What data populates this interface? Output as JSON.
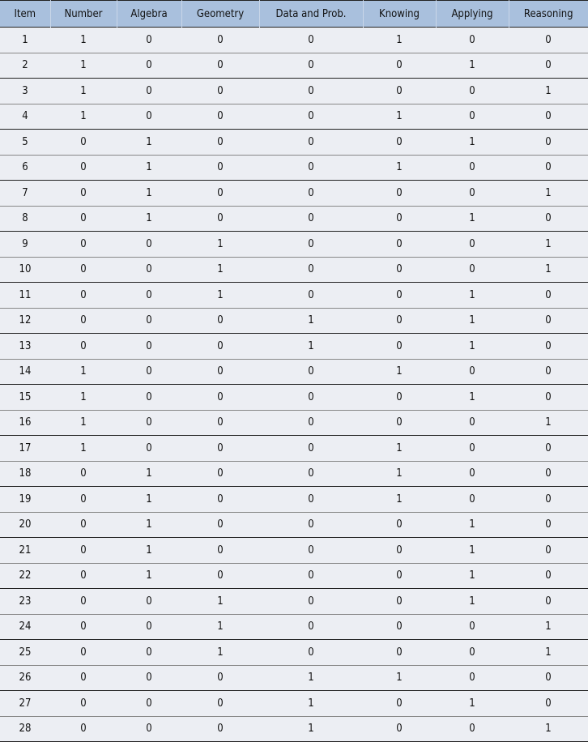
{
  "table": {
    "headers": [
      "Item",
      "Number",
      "Algebra",
      "Geometry",
      "Data and Prob.",
      "Knowing",
      "Applying",
      "Reasoning"
    ],
    "rows": [
      [
        "1",
        "1",
        "0",
        "0",
        "0",
        "1",
        "0",
        "0"
      ],
      [
        "2",
        "1",
        "0",
        "0",
        "0",
        "0",
        "1",
        "0"
      ],
      [
        "3",
        "1",
        "0",
        "0",
        "0",
        "0",
        "0",
        "1"
      ],
      [
        "4",
        "1",
        "0",
        "0",
        "0",
        "1",
        "0",
        "0"
      ],
      [
        "5",
        "0",
        "1",
        "0",
        "0",
        "0",
        "1",
        "0"
      ],
      [
        "6",
        "0",
        "1",
        "0",
        "0",
        "1",
        "0",
        "0"
      ],
      [
        "7",
        "0",
        "1",
        "0",
        "0",
        "0",
        "0",
        "1"
      ],
      [
        "8",
        "0",
        "1",
        "0",
        "0",
        "0",
        "1",
        "0"
      ],
      [
        "9",
        "0",
        "0",
        "1",
        "0",
        "0",
        "0",
        "1"
      ],
      [
        "10",
        "0",
        "0",
        "1",
        "0",
        "0",
        "0",
        "1"
      ],
      [
        "11",
        "0",
        "0",
        "1",
        "0",
        "0",
        "1",
        "0"
      ],
      [
        "12",
        "0",
        "0",
        "0",
        "1",
        "0",
        "1",
        "0"
      ],
      [
        "13",
        "0",
        "0",
        "0",
        "1",
        "0",
        "1",
        "0"
      ],
      [
        "14",
        "1",
        "0",
        "0",
        "0",
        "1",
        "0",
        "0"
      ],
      [
        "15",
        "1",
        "0",
        "0",
        "0",
        "0",
        "1",
        "0"
      ],
      [
        "16",
        "1",
        "0",
        "0",
        "0",
        "0",
        "0",
        "1"
      ],
      [
        "17",
        "1",
        "0",
        "0",
        "0",
        "1",
        "0",
        "0"
      ],
      [
        "18",
        "0",
        "1",
        "0",
        "0",
        "1",
        "0",
        "0"
      ],
      [
        "19",
        "0",
        "1",
        "0",
        "0",
        "1",
        "0",
        "0"
      ],
      [
        "20",
        "0",
        "1",
        "0",
        "0",
        "0",
        "1",
        "0"
      ],
      [
        "21",
        "0",
        "1",
        "0",
        "0",
        "0",
        "1",
        "0"
      ],
      [
        "22",
        "0",
        "1",
        "0",
        "0",
        "0",
        "1",
        "0"
      ],
      [
        "23",
        "0",
        "0",
        "1",
        "0",
        "0",
        "1",
        "0"
      ],
      [
        "24",
        "0",
        "0",
        "1",
        "0",
        "0",
        "0",
        "1"
      ],
      [
        "25",
        "0",
        "0",
        "1",
        "0",
        "0",
        "0",
        "1"
      ],
      [
        "26",
        "0",
        "0",
        "0",
        "1",
        "1",
        "0",
        "0"
      ],
      [
        "27",
        "0",
        "0",
        "0",
        "1",
        "0",
        "1",
        "0"
      ],
      [
        "28",
        "0",
        "0",
        "0",
        "1",
        "0",
        "0",
        "1"
      ]
    ]
  },
  "colors": {
    "header_bg": "#a9c0dd",
    "body_bg": "#eceef3"
  }
}
